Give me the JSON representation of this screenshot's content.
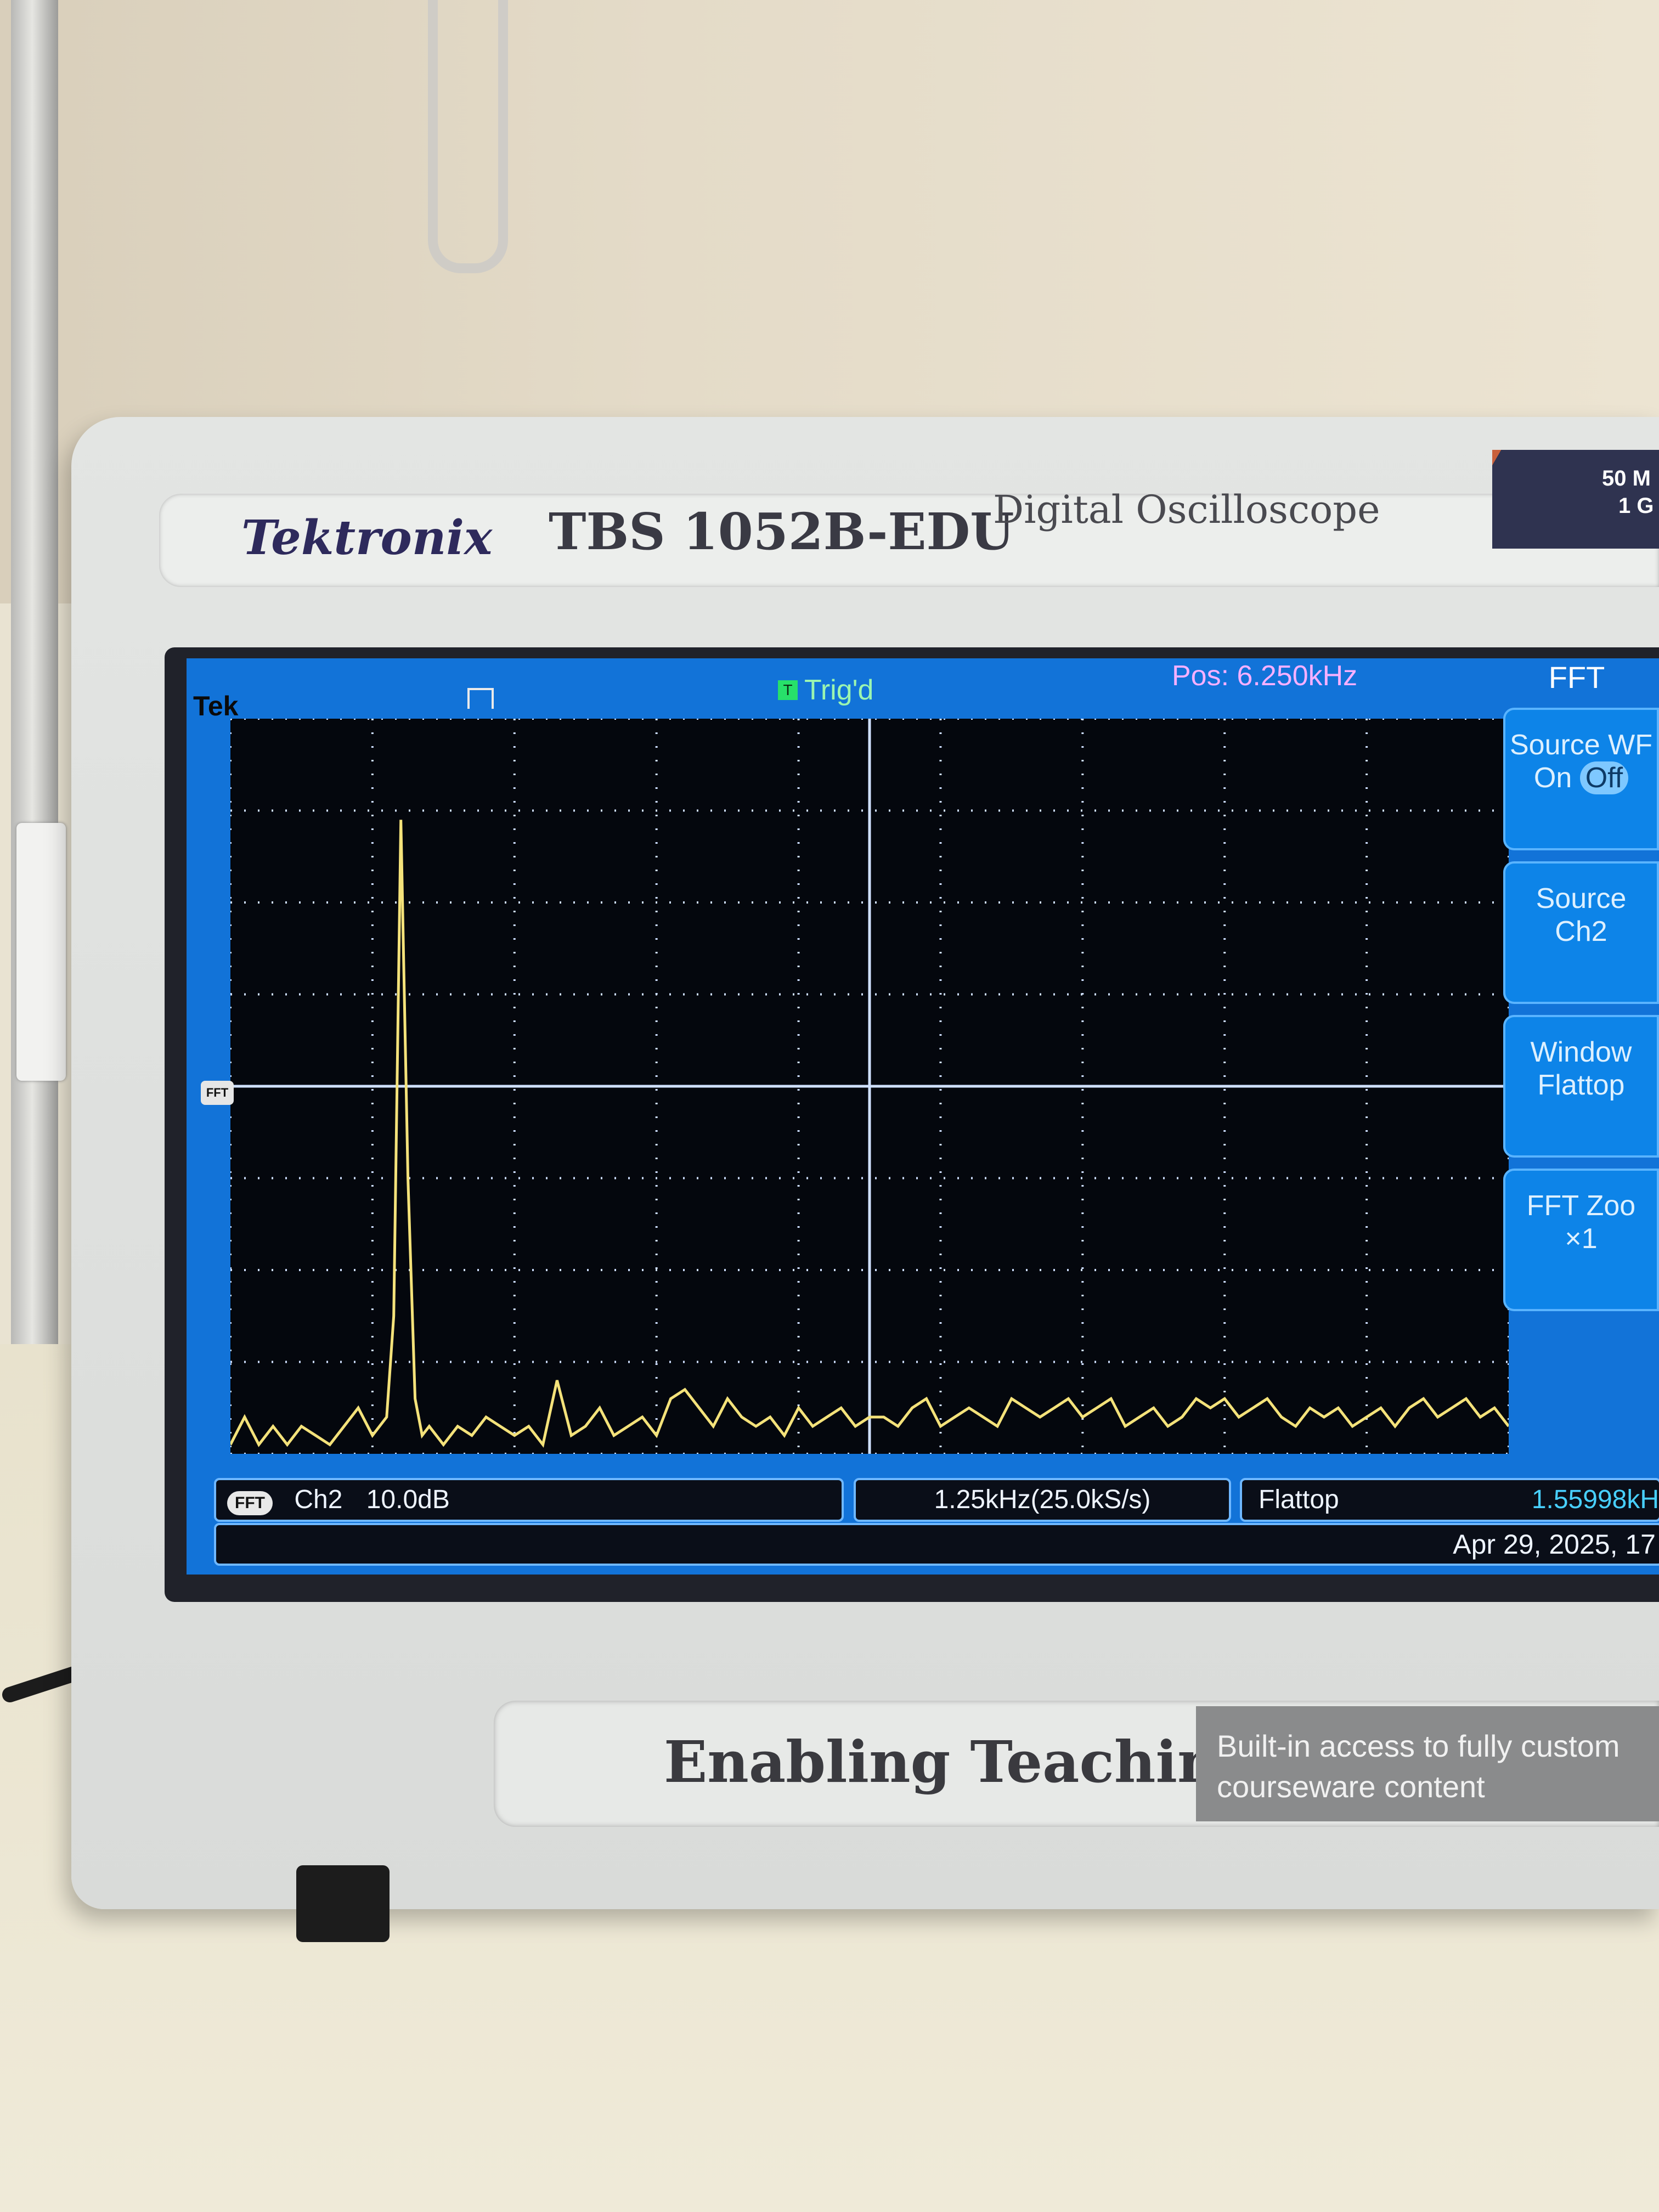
{
  "device": {
    "brand": "Tektronix",
    "model": "TBS 1052B-EDU",
    "description": "Digital Oscilloscope",
    "spec_line1": "50 M",
    "spec_line2": "1 G"
  },
  "screen": {
    "tek_label": "Tek",
    "trigger_status": "Trig'd",
    "trigger_icon": "T",
    "position": "Pos: 6.250kHz",
    "ref_marker": "FFT",
    "accent_colors": {
      "trace": "#f4e27a",
      "grid": "#cfe0ff",
      "panel": "#1273d8"
    }
  },
  "side_menu": {
    "title": "FFT",
    "items": [
      {
        "line1": "Source WF",
        "on": "On",
        "off": "Off"
      },
      {
        "line1": "Source",
        "line2": "Ch2"
      },
      {
        "line1": "Window",
        "line2": "Flattop"
      },
      {
        "line1": "FFT Zoo",
        "line2": "×1"
      }
    ]
  },
  "status": {
    "badge": "FFT",
    "channel": "Ch2",
    "scale": "10.0dB",
    "span": "1.25kHz(25.0kS/s)",
    "window": "Flattop",
    "frequency": "1.55998kH",
    "date": "Apr 29, 2025, 17"
  },
  "panel": {
    "tagline": "Enabling Teaching",
    "promo_line1": "Built-in access to fully custom",
    "promo_line2": "courseware content"
  },
  "chart_data": {
    "type": "line",
    "title": "",
    "xlabel": "",
    "ylabel": "",
    "xlim": [
      0,
      9
    ],
    "ylim": [
      0,
      8
    ],
    "series": [
      {
        "x": [
          0.0,
          0.1,
          0.2,
          0.3,
          0.4,
          0.5,
          0.6,
          0.7,
          0.8,
          0.9,
          1.0,
          1.1,
          1.15,
          1.2,
          1.25,
          1.3,
          1.35,
          1.4,
          1.5,
          1.6,
          1.7,
          1.8,
          1.9,
          2.0,
          2.1,
          2.2,
          2.3,
          2.4,
          2.5,
          2.6,
          2.7,
          2.8,
          2.9,
          3.0,
          3.1,
          3.2,
          3.3,
          3.4,
          3.5,
          3.6,
          3.7,
          3.8,
          3.9,
          4.0,
          4.1,
          4.2,
          4.3,
          4.4,
          4.5,
          4.6,
          4.7,
          4.8,
          4.9,
          5.0,
          5.1,
          5.2,
          5.3,
          5.4,
          5.5,
          5.6,
          5.7,
          5.8,
          5.9,
          6.0,
          6.1,
          6.2,
          6.3,
          6.4,
          6.5,
          6.6,
          6.7,
          6.8,
          6.9,
          7.0,
          7.1,
          7.2,
          7.3,
          7.4,
          7.5,
          7.6,
          7.7,
          7.8,
          7.9,
          8.0,
          8.1,
          8.2,
          8.3,
          8.4,
          8.5,
          8.6,
          8.7,
          8.8,
          8.9,
          9.0
        ],
        "y": [
          0.1,
          0.4,
          0.1,
          0.3,
          0.1,
          0.3,
          0.2,
          0.1,
          0.3,
          0.5,
          0.2,
          0.4,
          1.5,
          6.9,
          3.0,
          0.6,
          0.2,
          0.3,
          0.1,
          0.3,
          0.2,
          0.4,
          0.3,
          0.2,
          0.3,
          0.1,
          0.8,
          0.2,
          0.3,
          0.5,
          0.2,
          0.3,
          0.4,
          0.2,
          0.6,
          0.7,
          0.5,
          0.3,
          0.6,
          0.4,
          0.3,
          0.4,
          0.2,
          0.5,
          0.3,
          0.4,
          0.5,
          0.3,
          0.4,
          0.4,
          0.3,
          0.5,
          0.6,
          0.3,
          0.4,
          0.5,
          0.4,
          0.3,
          0.6,
          0.5,
          0.4,
          0.5,
          0.6,
          0.4,
          0.5,
          0.6,
          0.3,
          0.4,
          0.5,
          0.3,
          0.4,
          0.6,
          0.5,
          0.6,
          0.4,
          0.5,
          0.6,
          0.4,
          0.3,
          0.5,
          0.4,
          0.5,
          0.3,
          0.4,
          0.5,
          0.3,
          0.5,
          0.6,
          0.4,
          0.5,
          0.6,
          0.4,
          0.5,
          0.3
        ]
      }
    ]
  }
}
